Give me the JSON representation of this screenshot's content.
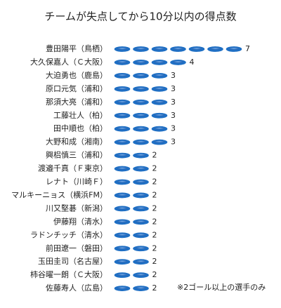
{
  "chart_data": {
    "type": "pictogram",
    "title": "チームが失点してから10分以内の得点数",
    "note": "※2ゴール以上の選手のみ",
    "color": "#1f6fc4",
    "categories": [
      "豊田陽平（鳥栖）",
      "大久保嘉人（Ｃ大阪）",
      "大迫勇也（鹿島）",
      "原口元気（浦和）",
      "那須大亮（浦和）",
      "工藤壮人（柏）",
      "田中順也（柏）",
      "大野和成（湘南）",
      "興梠慎三（浦和）",
      "渡邉千真（Ｆ東京）",
      "レナト（川崎Ｆ）",
      "マルキーニョス（横浜FM）",
      "川又堅碁（新潟）",
      "伊藤翔（清水）",
      "ラドンチッチ（清水）",
      "前田遼一（磐田）",
      "玉田圭司（名古屋）",
      "柿谷曜一朗（Ｃ大阪）",
      "佐藤寿人（広島）"
    ],
    "values": [
      7,
      4,
      3,
      3,
      3,
      3,
      3,
      3,
      2,
      2,
      2,
      2,
      2,
      2,
      2,
      2,
      2,
      2,
      2
    ]
  }
}
